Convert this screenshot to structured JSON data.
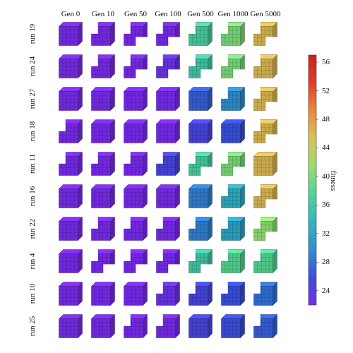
{
  "columns": [
    "Gen 0",
    "Gen 10",
    "Gen 50",
    "Gen 100",
    "Gen 500",
    "Gen 1000",
    "Gen 5000"
  ],
  "rows": [
    {
      "label": "run 19",
      "fitness": [
        22,
        22,
        22,
        22,
        37,
        40,
        46
      ],
      "holes": [
        0,
        1,
        2,
        2,
        1,
        1,
        2
      ]
    },
    {
      "label": "run 24",
      "fitness": [
        22,
        22,
        22,
        23,
        36,
        40,
        46
      ],
      "holes": [
        0,
        1,
        2,
        2,
        2,
        2,
        1
      ]
    },
    {
      "label": "run 27",
      "fitness": [
        22,
        22,
        22,
        22,
        27,
        30,
        46
      ],
      "holes": [
        0,
        0,
        0,
        0,
        0,
        1,
        2
      ]
    },
    {
      "label": "run 18",
      "fitness": [
        22,
        22,
        22,
        22,
        25,
        26,
        46
      ],
      "holes": [
        1,
        0,
        0,
        0,
        0,
        0,
        2
      ]
    },
    {
      "label": "run 11",
      "fitness": [
        22,
        22,
        22,
        25,
        37,
        40,
        46
      ],
      "holes": [
        1,
        1,
        1,
        1,
        2,
        2,
        0
      ]
    },
    {
      "label": "run 16",
      "fitness": [
        22,
        22,
        22,
        22,
        29,
        33,
        46
      ],
      "holes": [
        0,
        0,
        0,
        0,
        0,
        1,
        2
      ]
    },
    {
      "label": "run 22",
      "fitness": [
        22,
        22,
        22,
        22,
        29,
        32,
        41
      ],
      "holes": [
        0,
        1,
        1,
        1,
        1,
        1,
        2
      ]
    },
    {
      "label": "run 4",
      "fitness": [
        22,
        22,
        22,
        22,
        36,
        38,
        38
      ],
      "holes": [
        0,
        2,
        2,
        2,
        2,
        1,
        1
      ]
    },
    {
      "label": "run 10",
      "fitness": [
        22,
        22,
        22,
        23,
        25,
        26,
        28
      ],
      "holes": [
        0,
        0,
        0,
        1,
        1,
        1,
        1
      ]
    },
    {
      "label": "run 25",
      "fitness": [
        22,
        22,
        22,
        22,
        25,
        26,
        27
      ],
      "holes": [
        0,
        0,
        1,
        1,
        0,
        0,
        1
      ]
    }
  ],
  "colorbar": {
    "title": "fitness",
    "min": 22,
    "max": 57,
    "ticks": [
      24,
      28,
      32,
      36,
      40,
      44,
      48,
      52,
      56
    ],
    "stops": [
      "#7a2cf0",
      "#3b4fe0",
      "#2f8fd3",
      "#2fb8c0",
      "#4fd49a",
      "#98e06c",
      "#d7c25a",
      "#f0883b",
      "#e33a28",
      "#d41c1c"
    ]
  }
}
